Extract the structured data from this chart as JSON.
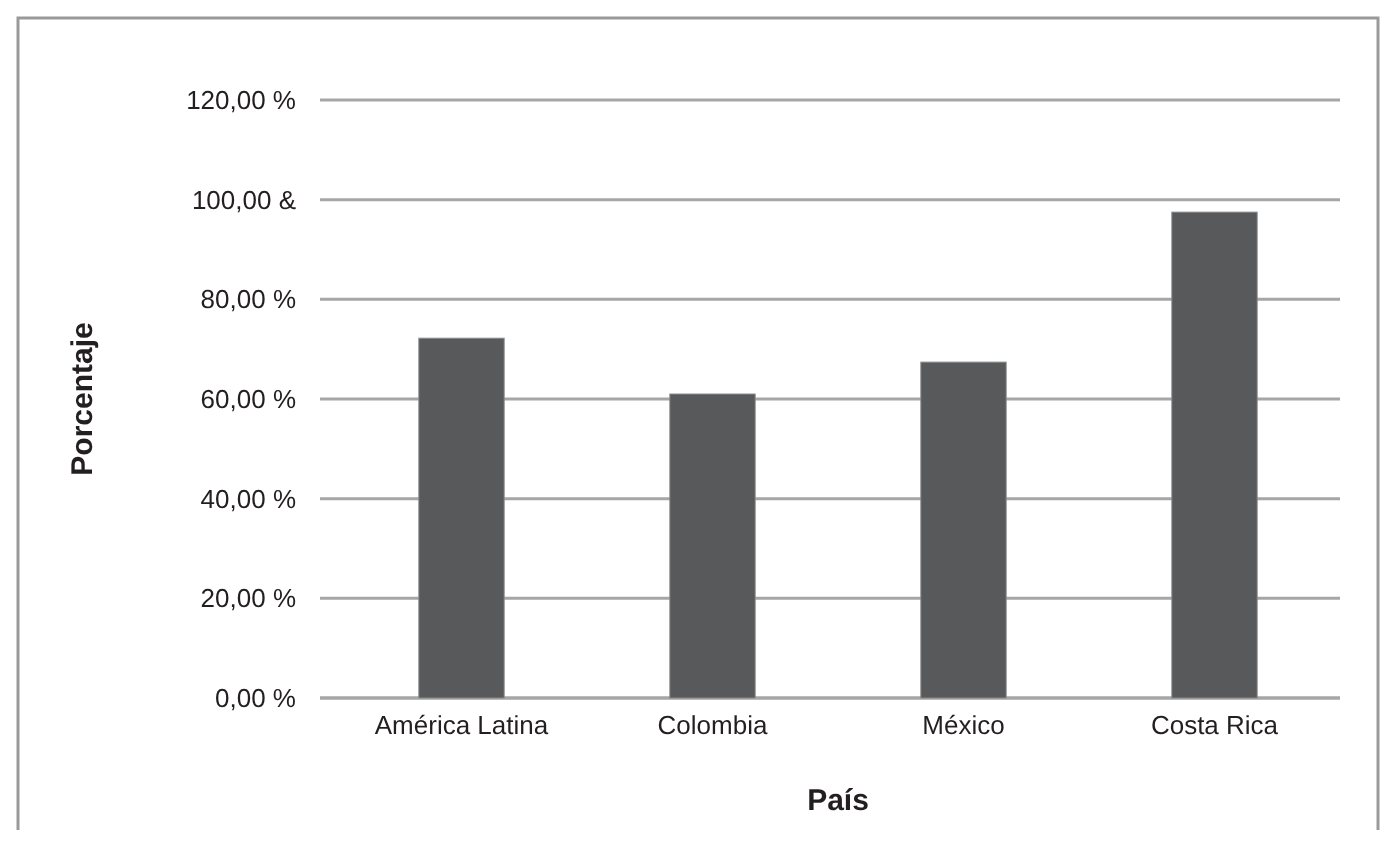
{
  "chart_data": {
    "type": "bar",
    "xlabel": "País",
    "ylabel": "Porcentaje",
    "categories": [
      "América Latina",
      "Colombia",
      "México",
      "Costa Rica"
    ],
    "values": [
      72.2,
      61.0,
      67.4,
      97.5
    ],
    "color": "#58595b",
    "ylim": [
      0,
      120
    ],
    "yticks": [
      {
        "value": 0,
        "label": "0,00 %"
      },
      {
        "value": 20,
        "label": "20,00 %"
      },
      {
        "value": 40,
        "label": "40,00 %"
      },
      {
        "value": 60,
        "label": "60,00 %"
      },
      {
        "value": 80,
        "label": "80,00 %"
      },
      {
        "value": 100,
        "label": "100,00 &"
      },
      {
        "value": 120,
        "label": "120,00 %"
      }
    ],
    "grid": "y"
  }
}
